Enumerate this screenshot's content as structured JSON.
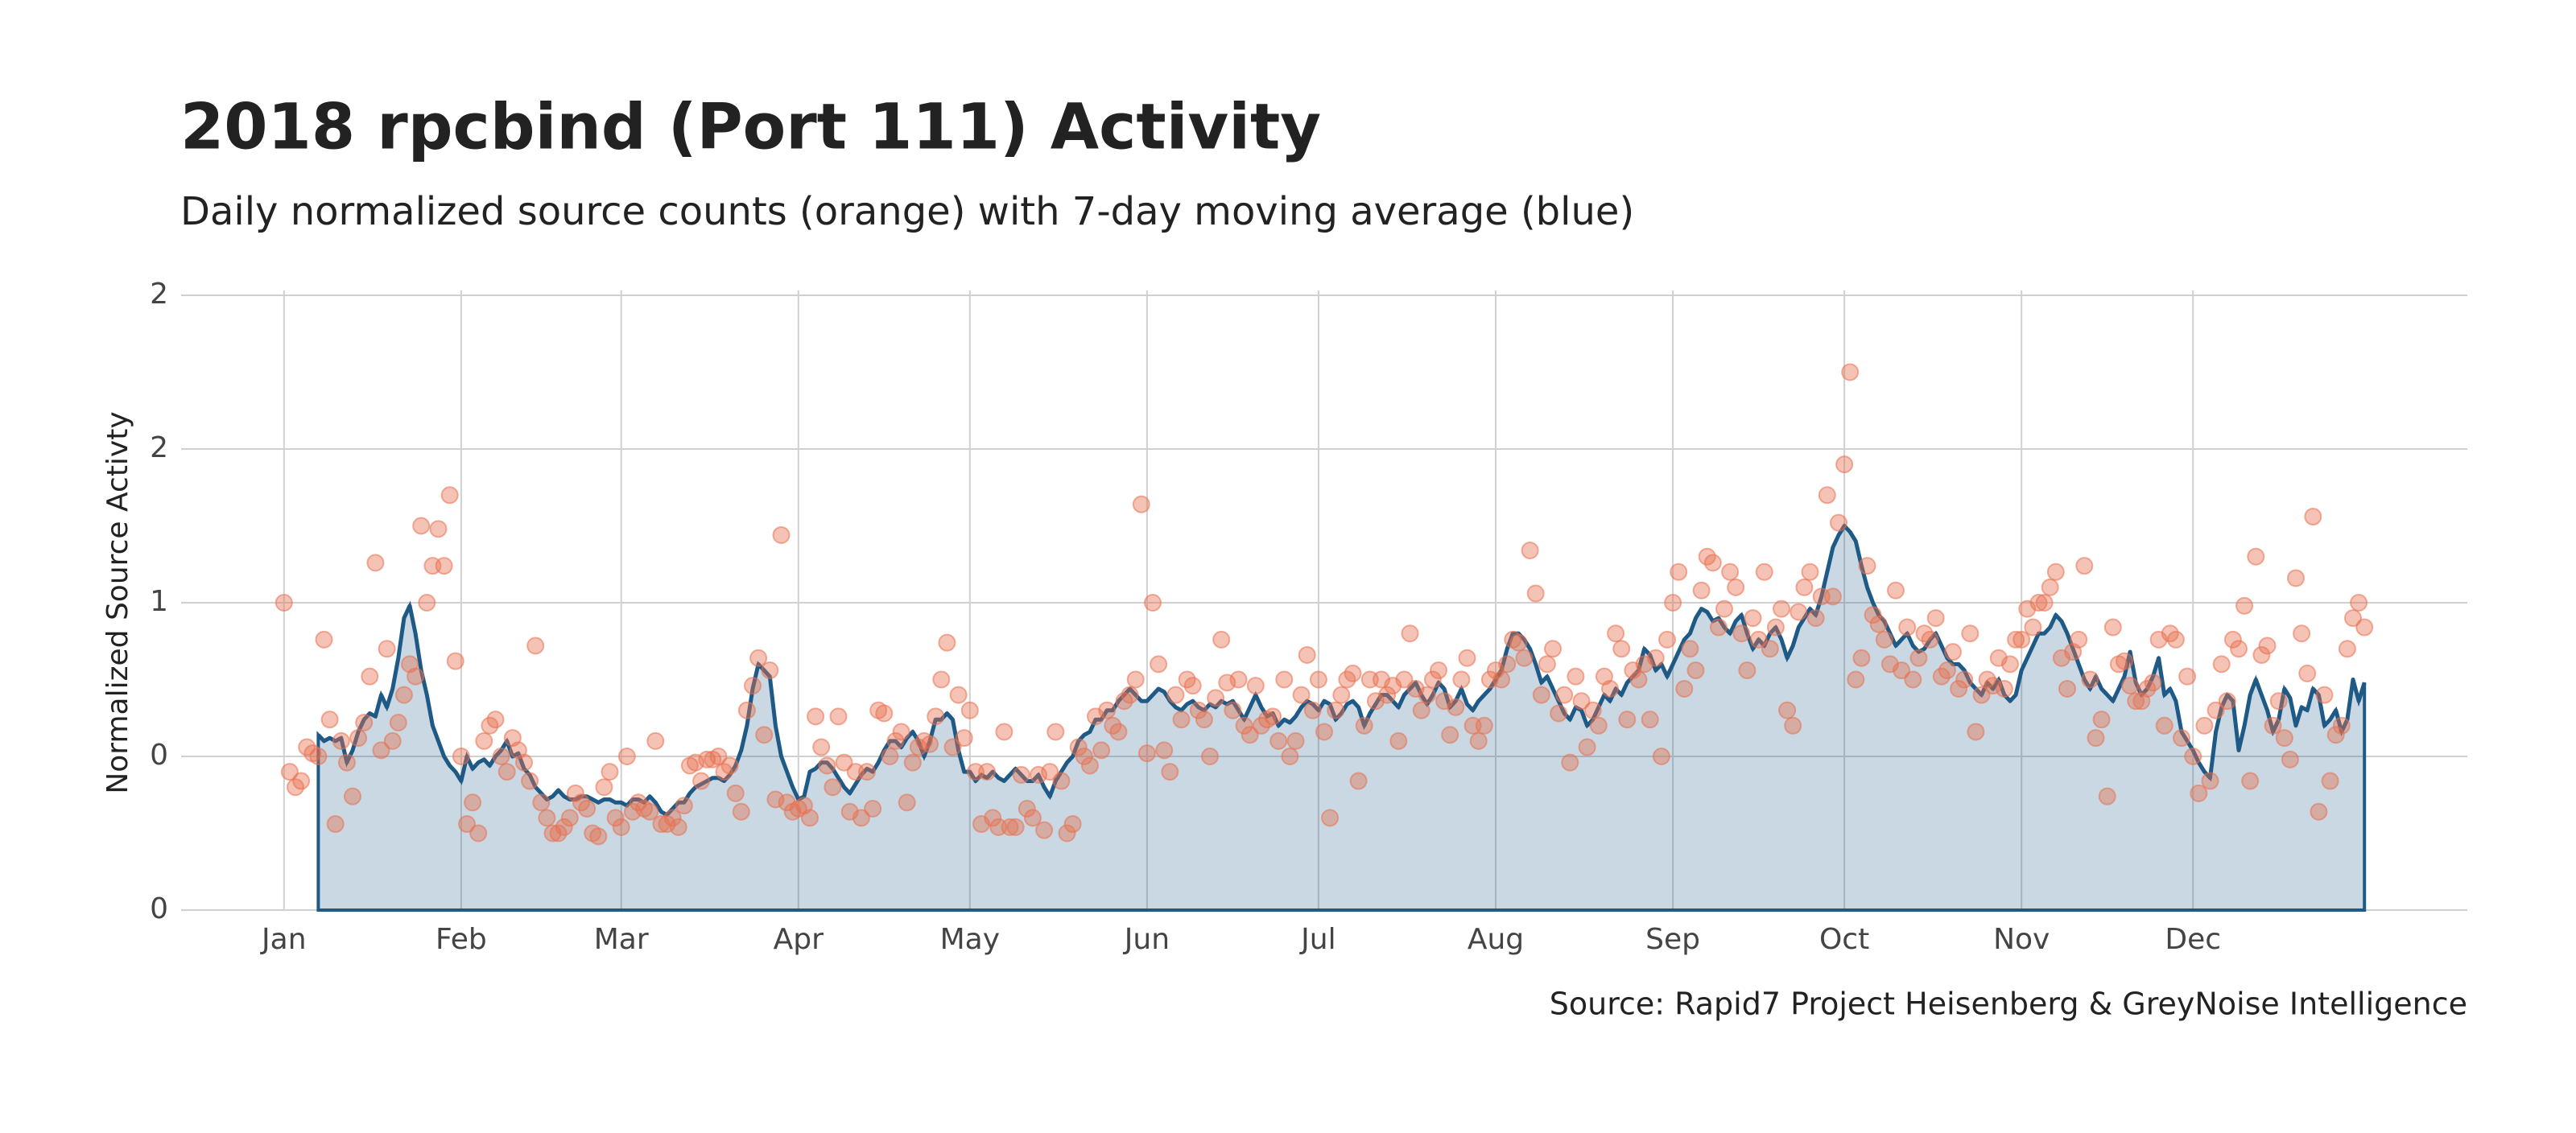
{
  "chart_data": {
    "type": "combo",
    "title": "2018 rpcbind (Port 111) Activity",
    "subtitle": "Daily normalized source counts (orange) with 7-day moving average (blue)",
    "y_label": "Normalized Source Activty",
    "caption": "Source: Rapid7 Project Heisenberg & GreyNoise Intelligence",
    "xlim": [
      -17,
      383
    ],
    "xticks": [
      {
        "value": 1,
        "label": "Jan"
      },
      {
        "value": 32,
        "label": "Feb"
      },
      {
        "value": 60,
        "label": "Mar"
      },
      {
        "value": 91,
        "label": "Apr"
      },
      {
        "value": 121,
        "label": "May"
      },
      {
        "value": 152,
        "label": "Jun"
      },
      {
        "value": 182,
        "label": "Jul"
      },
      {
        "value": 213,
        "label": "Aug"
      },
      {
        "value": 244,
        "label": "Sep"
      },
      {
        "value": 274,
        "label": "Oct"
      },
      {
        "value": 305,
        "label": "Nov"
      },
      {
        "value": 335,
        "label": "Dec"
      }
    ],
    "ylim": [
      0,
      2
    ],
    "yticks": [
      0,
      {
        "value": 0.5,
        "label": "0"
      },
      1,
      {
        "value": 1.5,
        "label": "2"
      },
      2
    ],
    "grid": true,
    "x": [
      1,
      2,
      3,
      4,
      5,
      6,
      7,
      8,
      9,
      10,
      11,
      12,
      13,
      14,
      15,
      16,
      17,
      18,
      19,
      20,
      21,
      22,
      23,
      24,
      25,
      26,
      27,
      28,
      29,
      30,
      31,
      32,
      33,
      34,
      35,
      36,
      37,
      38,
      39,
      40,
      41,
      42,
      43,
      44,
      45,
      46,
      47,
      48,
      49,
      50,
      51,
      52,
      53,
      54,
      55,
      56,
      57,
      58,
      59,
      60,
      61,
      62,
      63,
      64,
      65,
      66,
      67,
      68,
      69,
      70,
      71,
      72,
      73,
      74,
      75,
      76,
      77,
      78,
      79,
      80,
      81,
      82,
      83,
      84,
      85,
      86,
      87,
      88,
      89,
      90,
      91,
      92,
      93,
      94,
      95,
      96,
      97,
      98,
      99,
      100,
      101,
      102,
      103,
      104,
      105,
      106,
      107,
      108,
      109,
      110,
      111,
      112,
      113,
      114,
      115,
      116,
      117,
      118,
      119,
      120,
      121,
      122,
      123,
      124,
      125,
      126,
      127,
      128,
      129,
      130,
      131,
      132,
      133,
      134,
      135,
      136,
      137,
      138,
      139,
      140,
      141,
      142,
      143,
      144,
      145,
      146,
      147,
      148,
      149,
      150,
      151,
      152,
      153,
      154,
      155,
      156,
      157,
      158,
      159,
      160,
      161,
      162,
      163,
      164,
      165,
      166,
      167,
      168,
      169,
      170,
      171,
      172,
      173,
      174,
      175,
      176,
      177,
      178,
      179,
      180,
      181,
      182,
      183,
      184,
      185,
      186,
      187,
      188,
      189,
      190,
      191,
      192,
      193,
      194,
      195,
      196,
      197,
      198,
      199,
      200,
      201,
      202,
      203,
      204,
      205,
      206,
      207,
      208,
      209,
      210,
      211,
      212,
      213,
      214,
      215,
      216,
      217,
      218,
      219,
      220,
      221,
      222,
      223,
      224,
      225,
      226,
      227,
      228,
      229,
      230,
      231,
      232,
      233,
      234,
      235,
      236,
      237,
      238,
      239,
      240,
      241,
      242,
      243,
      244,
      245,
      246,
      247,
      248,
      249,
      250,
      251,
      252,
      253,
      254,
      255,
      256,
      257,
      258,
      259,
      260,
      261,
      262,
      263,
      264,
      265,
      266,
      267,
      268,
      269,
      270,
      271,
      272,
      273,
      274,
      275,
      276,
      277,
      278,
      279,
      280,
      281,
      282,
      283,
      284,
      285,
      286,
      287,
      288,
      289,
      290,
      291,
      292,
      293,
      294,
      295,
      296,
      297,
      298,
      299,
      300,
      301,
      302,
      303,
      304,
      305,
      306,
      307,
      308,
      309,
      310,
      311,
      312,
      313,
      314,
      315,
      316,
      317,
      318,
      319,
      320,
      321,
      322,
      323,
      324,
      325,
      326,
      327,
      328,
      329,
      330,
      331,
      332,
      333,
      334,
      335,
      336,
      337,
      338,
      339,
      340,
      341,
      342,
      343,
      344,
      345,
      346,
      347,
      348,
      349,
      350,
      351,
      352,
      353,
      354,
      355,
      356,
      357,
      358,
      359,
      360,
      361,
      362,
      363,
      364,
      365
    ],
    "series": [
      {
        "type": "scatter",
        "color": "#e8704f",
        "values": [
          1.0,
          0.45,
          0.4,
          0.42,
          0.53,
          0.51,
          0.5,
          0.88,
          0.62,
          0.28,
          0.55,
          0.48,
          0.37,
          0.56,
          0.61,
          0.76,
          1.13,
          0.52,
          0.85,
          0.55,
          0.61,
          0.7,
          0.8,
          0.76,
          1.25,
          1.0,
          1.12,
          1.24,
          1.12,
          1.35,
          0.81,
          0.5,
          0.28,
          0.35,
          0.25,
          0.55,
          0.6,
          0.62,
          0.5,
          0.45,
          0.56,
          0.52,
          0.48,
          0.42,
          0.86,
          0.35,
          0.3,
          0.25,
          0.25,
          0.27,
          0.3,
          0.38,
          0.35,
          0.33,
          0.25,
          0.24,
          0.4,
          0.45,
          0.3,
          0.27,
          0.5,
          0.32,
          0.35,
          0.33,
          0.32,
          0.55,
          0.28,
          0.28,
          0.3,
          0.27,
          0.34,
          0.47,
          0.48,
          0.42,
          0.49,
          0.49,
          0.5,
          0.45,
          0.47,
          0.38,
          0.32,
          0.65,
          0.73,
          0.82,
          0.57,
          0.78,
          0.36,
          1.22,
          0.35,
          0.32,
          0.33,
          0.34,
          0.3,
          0.63,
          0.53,
          0.47,
          0.4,
          0.63,
          0.48,
          0.32,
          0.45,
          0.3,
          0.45,
          0.33,
          0.65,
          0.64,
          0.5,
          0.55,
          0.58,
          0.35,
          0.48,
          0.53,
          0.55,
          0.54,
          0.63,
          0.75,
          0.87,
          0.53,
          0.7,
          0.56,
          0.65,
          0.45,
          0.28,
          0.45,
          0.3,
          0.27,
          0.58,
          0.27,
          0.27,
          0.44,
          0.33,
          0.3,
          0.44,
          0.26,
          0.45,
          0.58,
          0.42,
          0.25,
          0.28,
          0.53,
          0.5,
          0.47,
          0.63,
          0.52,
          0.65,
          0.6,
          0.58,
          0.68,
          0.7,
          0.75,
          1.32,
          0.51,
          1.0,
          0.8,
          0.52,
          0.45,
          0.7,
          0.62,
          0.75,
          0.73,
          0.65,
          0.62,
          0.5,
          0.69,
          0.88,
          0.74,
          0.65,
          0.75,
          0.6,
          0.57,
          0.73,
          0.6,
          0.62,
          0.63,
          0.55,
          0.75,
          0.5,
          0.55,
          0.7,
          0.83,
          0.65,
          0.75,
          0.58,
          0.3,
          0.65,
          0.7,
          0.75,
          0.77,
          0.42,
          0.6,
          0.75,
          0.68,
          0.75,
          0.7,
          0.73,
          0.55,
          0.75,
          0.9,
          0.72,
          0.65,
          0.7,
          0.75,
          0.78,
          0.68,
          0.57,
          0.66,
          0.75,
          0.82,
          0.6,
          0.55,
          0.6,
          0.75,
          0.78,
          0.75,
          0.8,
          0.88,
          0.87,
          0.82,
          1.17,
          1.03,
          0.7,
          0.8,
          0.85,
          0.64,
          0.7,
          0.48,
          0.76,
          0.68,
          0.53,
          0.65,
          0.6,
          0.76,
          0.72,
          0.9,
          0.85,
          0.62,
          0.78,
          0.75,
          0.8,
          0.62,
          0.82,
          0.5,
          0.88,
          1.0,
          1.1,
          0.72,
          0.85,
          0.78,
          1.04,
          1.15,
          1.13,
          0.92,
          0.98,
          1.1,
          1.05,
          0.9,
          0.78,
          0.95,
          0.88,
          1.1,
          0.85,
          0.92,
          0.98,
          0.65,
          0.6,
          0.97,
          1.05,
          1.1,
          0.95,
          1.02,
          1.35,
          1.02,
          1.26,
          1.45,
          1.75,
          0.75,
          0.82,
          1.12,
          0.96,
          0.93,
          0.88,
          0.8,
          1.04,
          0.78,
          0.92,
          0.75,
          0.82,
          0.9,
          0.88,
          0.95,
          0.76,
          0.78,
          0.84,
          0.72,
          0.75,
          0.9,
          0.58,
          0.7,
          0.75,
          0.73,
          0.82,
          0.72,
          0.8,
          0.88,
          0.88,
          0.98,
          0.92,
          1.0,
          1.0,
          1.05,
          1.1,
          0.82,
          0.72,
          0.84,
          0.88,
          1.12,
          0.75,
          0.56,
          0.62,
          0.37,
          0.92,
          0.8,
          0.81,
          0.73,
          0.68,
          0.68,
          0.72,
          0.74,
          0.88,
          0.6,
          0.9,
          0.88,
          0.56,
          0.76,
          0.5,
          0.38,
          0.6,
          0.42,
          0.65,
          0.8,
          0.68,
          0.88,
          0.85,
          0.99,
          0.42,
          1.15,
          0.83,
          0.86,
          0.6,
          0.68,
          0.56,
          0.49,
          1.08,
          0.9,
          0.77,
          1.28,
          0.32,
          0.7,
          0.42,
          0.57,
          0.6,
          0.85,
          0.95,
          1.0,
          0.92
        ]
      },
      {
        "type": "area",
        "color": "#1f5a87",
        "values": [
          null,
          null,
          null,
          null,
          null,
          null,
          0.57,
          0.55,
          0.56,
          0.55,
          0.56,
          0.48,
          0.52,
          0.58,
          0.62,
          0.64,
          0.63,
          0.7,
          0.66,
          0.72,
          0.82,
          0.95,
          0.99,
          0.9,
          0.78,
          0.7,
          0.6,
          0.55,
          0.5,
          0.47,
          0.45,
          0.42,
          0.5,
          0.46,
          0.48,
          0.49,
          0.47,
          0.5,
          0.52,
          0.55,
          0.5,
          0.51,
          0.46,
          0.44,
          0.4,
          0.38,
          0.36,
          0.37,
          0.39,
          0.37,
          0.36,
          0.36,
          0.37,
          0.37,
          0.36,
          0.35,
          0.36,
          0.36,
          0.35,
          0.35,
          0.34,
          0.36,
          0.36,
          0.35,
          0.37,
          0.35,
          0.32,
          0.31,
          0.33,
          0.35,
          0.35,
          0.38,
          0.4,
          0.41,
          0.42,
          0.43,
          0.43,
          0.42,
          0.44,
          0.47,
          0.52,
          0.6,
          0.72,
          0.8,
          0.78,
          0.76,
          0.6,
          0.5,
          0.45,
          0.4,
          0.36,
          0.37,
          0.45,
          0.46,
          0.48,
          0.48,
          0.46,
          0.43,
          0.4,
          0.38,
          0.41,
          0.44,
          0.46,
          0.45,
          0.48,
          0.52,
          0.55,
          0.55,
          0.53,
          0.56,
          0.58,
          0.55,
          0.5,
          0.55,
          0.62,
          0.62,
          0.64,
          0.62,
          0.52,
          0.45,
          0.45,
          0.42,
          0.44,
          0.43,
          0.45,
          0.43,
          0.42,
          0.44,
          0.46,
          0.44,
          0.42,
          0.42,
          0.44,
          0.4,
          0.37,
          0.42,
          0.45,
          0.48,
          0.5,
          0.55,
          0.57,
          0.58,
          0.62,
          0.62,
          0.65,
          0.65,
          0.68,
          0.7,
          0.72,
          0.7,
          0.68,
          0.68,
          0.7,
          0.72,
          0.71,
          0.68,
          0.66,
          0.65,
          0.67,
          0.68,
          0.66,
          0.65,
          0.67,
          0.66,
          0.68,
          0.67,
          0.68,
          0.65,
          0.62,
          0.66,
          0.7,
          0.66,
          0.63,
          0.64,
          0.6,
          0.62,
          0.61,
          0.63,
          0.66,
          0.68,
          0.67,
          0.65,
          0.68,
          0.67,
          0.62,
          0.64,
          0.67,
          0.68,
          0.66,
          0.6,
          0.64,
          0.67,
          0.7,
          0.7,
          0.68,
          0.66,
          0.7,
          0.72,
          0.74,
          0.7,
          0.67,
          0.7,
          0.74,
          0.72,
          0.66,
          0.68,
          0.72,
          0.67,
          0.65,
          0.68,
          0.7,
          0.72,
          0.75,
          0.78,
          0.85,
          0.9,
          0.9,
          0.88,
          0.85,
          0.8,
          0.74,
          0.76,
          0.72,
          0.68,
          0.64,
          0.62,
          0.66,
          0.65,
          0.6,
          0.62,
          0.66,
          0.7,
          0.68,
          0.72,
          0.7,
          0.74,
          0.76,
          0.78,
          0.85,
          0.83,
          0.78,
          0.8,
          0.76,
          0.8,
          0.84,
          0.88,
          0.9,
          0.95,
          0.98,
          0.97,
          0.94,
          0.95,
          0.92,
          0.9,
          0.94,
          0.96,
          0.9,
          0.85,
          0.88,
          0.86,
          0.9,
          0.92,
          0.88,
          0.82,
          0.86,
          0.92,
          0.95,
          0.98,
          0.96,
          1.02,
          1.1,
          1.18,
          1.22,
          1.25,
          1.23,
          1.2,
          1.12,
          1.05,
          1.0,
          0.96,
          0.94,
          0.9,
          0.86,
          0.88,
          0.9,
          0.86,
          0.84,
          0.85,
          0.88,
          0.9,
          0.86,
          0.82,
          0.8,
          0.8,
          0.78,
          0.74,
          0.72,
          0.7,
          0.74,
          0.72,
          0.75,
          0.7,
          0.68,
          0.7,
          0.78,
          0.82,
          0.86,
          0.9,
          0.9,
          0.92,
          0.96,
          0.94,
          0.9,
          0.85,
          0.8,
          0.75,
          0.72,
          0.76,
          0.72,
          0.7,
          0.68,
          0.72,
          0.76,
          0.84,
          0.74,
          0.7,
          0.72,
          0.76,
          0.82,
          0.7,
          0.72,
          0.68,
          0.58,
          0.55,
          0.52,
          0.48,
          0.45,
          0.43,
          0.58,
          0.66,
          0.7,
          0.68,
          0.52,
          0.6,
          0.7,
          0.75,
          0.7,
          0.65,
          0.58,
          0.62,
          0.72,
          0.69,
          0.6,
          0.66,
          0.65,
          0.72,
          0.7,
          0.6,
          0.62,
          0.65,
          0.58,
          0.62,
          0.75,
          0.68,
          0.74
        ]
      }
    ]
  }
}
